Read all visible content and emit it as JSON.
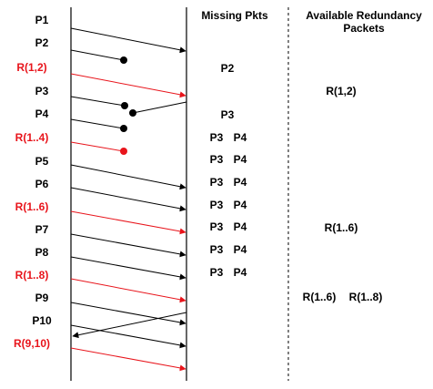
{
  "headers": {
    "missing": "Missing Pkts",
    "redundancy_line1": "Available Redundancy",
    "redundancy_line2": "Packets"
  },
  "colors": {
    "data_packet": "#000000",
    "redundancy_packet": "#e8141b",
    "background": "#ffffff"
  },
  "rows": [
    {
      "label": "P1",
      "kind": "data",
      "status": "received",
      "missing": [],
      "redundancy": []
    },
    {
      "label": "P2",
      "kind": "data",
      "status": "lost",
      "missing": [],
      "redundancy": []
    },
    {
      "label": "R(1,2)",
      "kind": "redundancy",
      "status": "received",
      "missing": [
        "P2"
      ],
      "redundancy": []
    },
    {
      "label": "P3",
      "kind": "data",
      "status": "lost",
      "missing": [],
      "redundancy": [
        "R(1,2)"
      ]
    },
    {
      "label": "P4",
      "kind": "data",
      "status": "lost",
      "missing": [
        "P3"
      ],
      "redundancy": []
    },
    {
      "label": "R(1..4)",
      "kind": "redundancy",
      "status": "lost",
      "missing": [
        "P3",
        "P4"
      ],
      "redundancy": []
    },
    {
      "label": "P5",
      "kind": "data",
      "status": "received",
      "missing": [
        "P3",
        "P4"
      ],
      "redundancy": []
    },
    {
      "label": "P6",
      "kind": "data",
      "status": "received",
      "missing": [
        "P3",
        "P4"
      ],
      "redundancy": []
    },
    {
      "label": "R(1..6)",
      "kind": "redundancy",
      "status": "received",
      "missing": [
        "P3",
        "P4"
      ],
      "redundancy": []
    },
    {
      "label": "P7",
      "kind": "data",
      "status": "received",
      "missing": [
        "P3",
        "P4"
      ],
      "redundancy": [
        "R(1..6)"
      ]
    },
    {
      "label": "P8",
      "kind": "data",
      "status": "received",
      "missing": [
        "P3",
        "P4"
      ],
      "redundancy": []
    },
    {
      "label": "R(1..8)",
      "kind": "redundancy",
      "status": "received",
      "missing": [
        "P3",
        "P4"
      ],
      "redundancy": []
    },
    {
      "label": "P9",
      "kind": "data",
      "status": "received",
      "missing": [],
      "redundancy": [
        "R(1..6)",
        "R(1..8)"
      ]
    },
    {
      "label": "P10",
      "kind": "data",
      "status": "received",
      "missing": [],
      "redundancy": []
    },
    {
      "label": "R(9,10)",
      "kind": "redundancy",
      "status": "received",
      "missing": [],
      "redundancy": []
    }
  ]
}
